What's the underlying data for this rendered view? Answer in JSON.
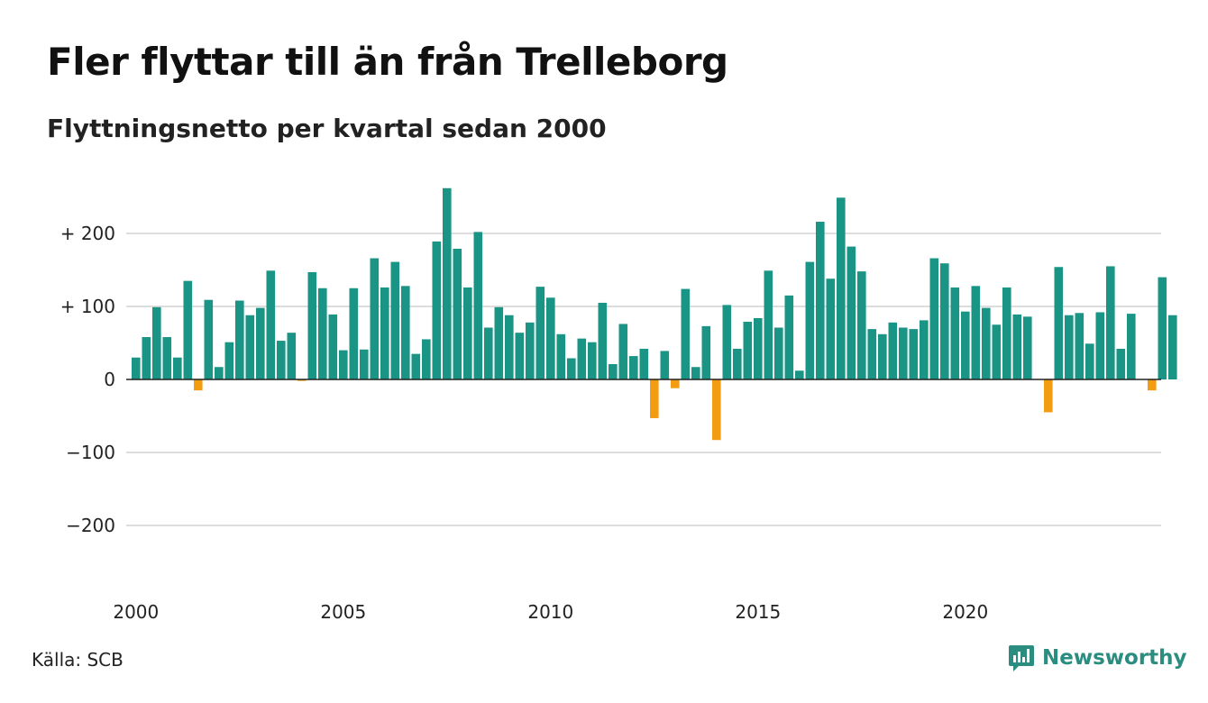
{
  "chart_data": {
    "type": "bar",
    "title": "Fler flyttar till än från Trelleborg",
    "subtitle": "Flyttningsnetto per kvartal sedan 2000",
    "x_start": "2000 Q1",
    "frequency": "quarter",
    "values": [
      30,
      58,
      99,
      58,
      30,
      135,
      -15,
      109,
      17,
      51,
      108,
      88,
      98,
      149,
      53,
      64,
      -2,
      147,
      125,
      89,
      40,
      125,
      41,
      166,
      126,
      161,
      128,
      35,
      55,
      189,
      262,
      179,
      126,
      202,
      71,
      99,
      88,
      64,
      78,
      127,
      112,
      62,
      29,
      56,
      51,
      105,
      21,
      76,
      32,
      42,
      -53,
      39,
      -12,
      124,
      17,
      73,
      -83,
      102,
      42,
      79,
      84,
      149,
      71,
      115,
      12,
      161,
      216,
      138,
      249,
      182,
      148,
      69,
      62,
      78,
      71,
      69,
      81,
      166,
      159,
      126,
      93,
      128,
      98,
      75,
      126,
      89,
      86,
      0,
      -45,
      154,
      88,
      91,
      49,
      92,
      155,
      42,
      90,
      0,
      -15,
      140,
      88
    ],
    "ylim": [
      -250,
      290
    ],
    "yticks": [
      200,
      100,
      0,
      -100,
      -200
    ],
    "ytick_labels": [
      "+ 200",
      "+ 100",
      "0",
      "−100",
      "−200"
    ],
    "xticks": [
      2000,
      2005,
      2010,
      2015,
      2020
    ],
    "xtick_labels": [
      "2000",
      "2005",
      "2010",
      "2015",
      "2020"
    ],
    "grid": true,
    "legend": "none",
    "colors": {
      "positive": "#1a9485",
      "negative": "#f39c12",
      "grid": "#dddddd",
      "zero_line": "#222222"
    }
  },
  "footer": {
    "source": "Källa: SCB",
    "brand": "Newsworthy",
    "brand_color": "#2a8d80",
    "brand_icon": "bar-chart-icon"
  }
}
